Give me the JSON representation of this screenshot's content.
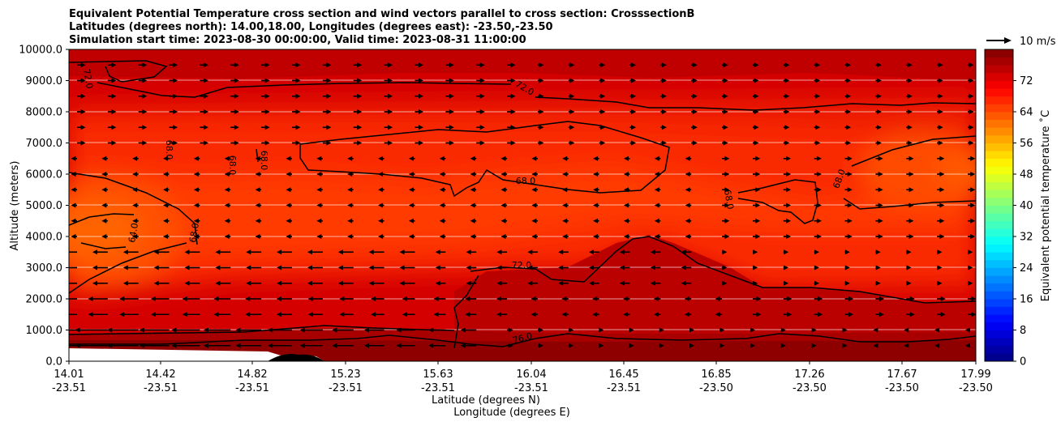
{
  "chart_data": {
    "type": "contour",
    "title_lines": [
      "Equivalent Potential Temperature cross section and wind vectors parallel to cross section: CrosssectionB",
      "Latitudes (degrees north): 14.00,18.00, Longitudes (degrees east): -23.50,-23.50",
      "Simulation start time: 2023-08-30 00:00:00, Valid time: 2023-08-31 11:00:00"
    ],
    "ylabel": "Altitude (meters)",
    "xlabel_lines": [
      "Latitude (degrees N)",
      "Longitude (degrees E)"
    ],
    "ylim": [
      0,
      10000
    ],
    "y_ticks": [
      "0.0",
      "1000.0",
      "2000.0",
      "3000.0",
      "4000.0",
      "5000.0",
      "6000.0",
      "7000.0",
      "8000.0",
      "9000.0",
      "10000.0"
    ],
    "x_ticks": [
      {
        "lat": "14.01",
        "lon": "-23.51"
      },
      {
        "lat": "14.42",
        "lon": "-23.51"
      },
      {
        "lat": "14.82",
        "lon": "-23.51"
      },
      {
        "lat": "15.23",
        "lon": "-23.51"
      },
      {
        "lat": "15.63",
        "lon": "-23.51"
      },
      {
        "lat": "16.04",
        "lon": "-23.51"
      },
      {
        "lat": "16.45",
        "lon": "-23.51"
      },
      {
        "lat": "16.85",
        "lon": "-23.50"
      },
      {
        "lat": "17.26",
        "lon": "-23.50"
      },
      {
        "lat": "17.67",
        "lon": "-23.50"
      },
      {
        "lat": "17.99",
        "lon": "-23.50"
      }
    ],
    "colorbar": {
      "label": "Equivalent potential temperature ˚C",
      "range": [
        0,
        80
      ],
      "ticks": [
        "0",
        "8",
        "16",
        "24",
        "32",
        "40",
        "48",
        "56",
        "64",
        "72"
      ]
    },
    "quiver_key": "10 m/s",
    "contour_labels": [
      "72.0",
      "72.0",
      "68.0",
      "68.0",
      "68.0",
      "68.0",
      "64.0",
      "68.0",
      "68.0",
      "72.0",
      "76.0",
      "68.0",
      "68.0"
    ],
    "grid": true
  }
}
